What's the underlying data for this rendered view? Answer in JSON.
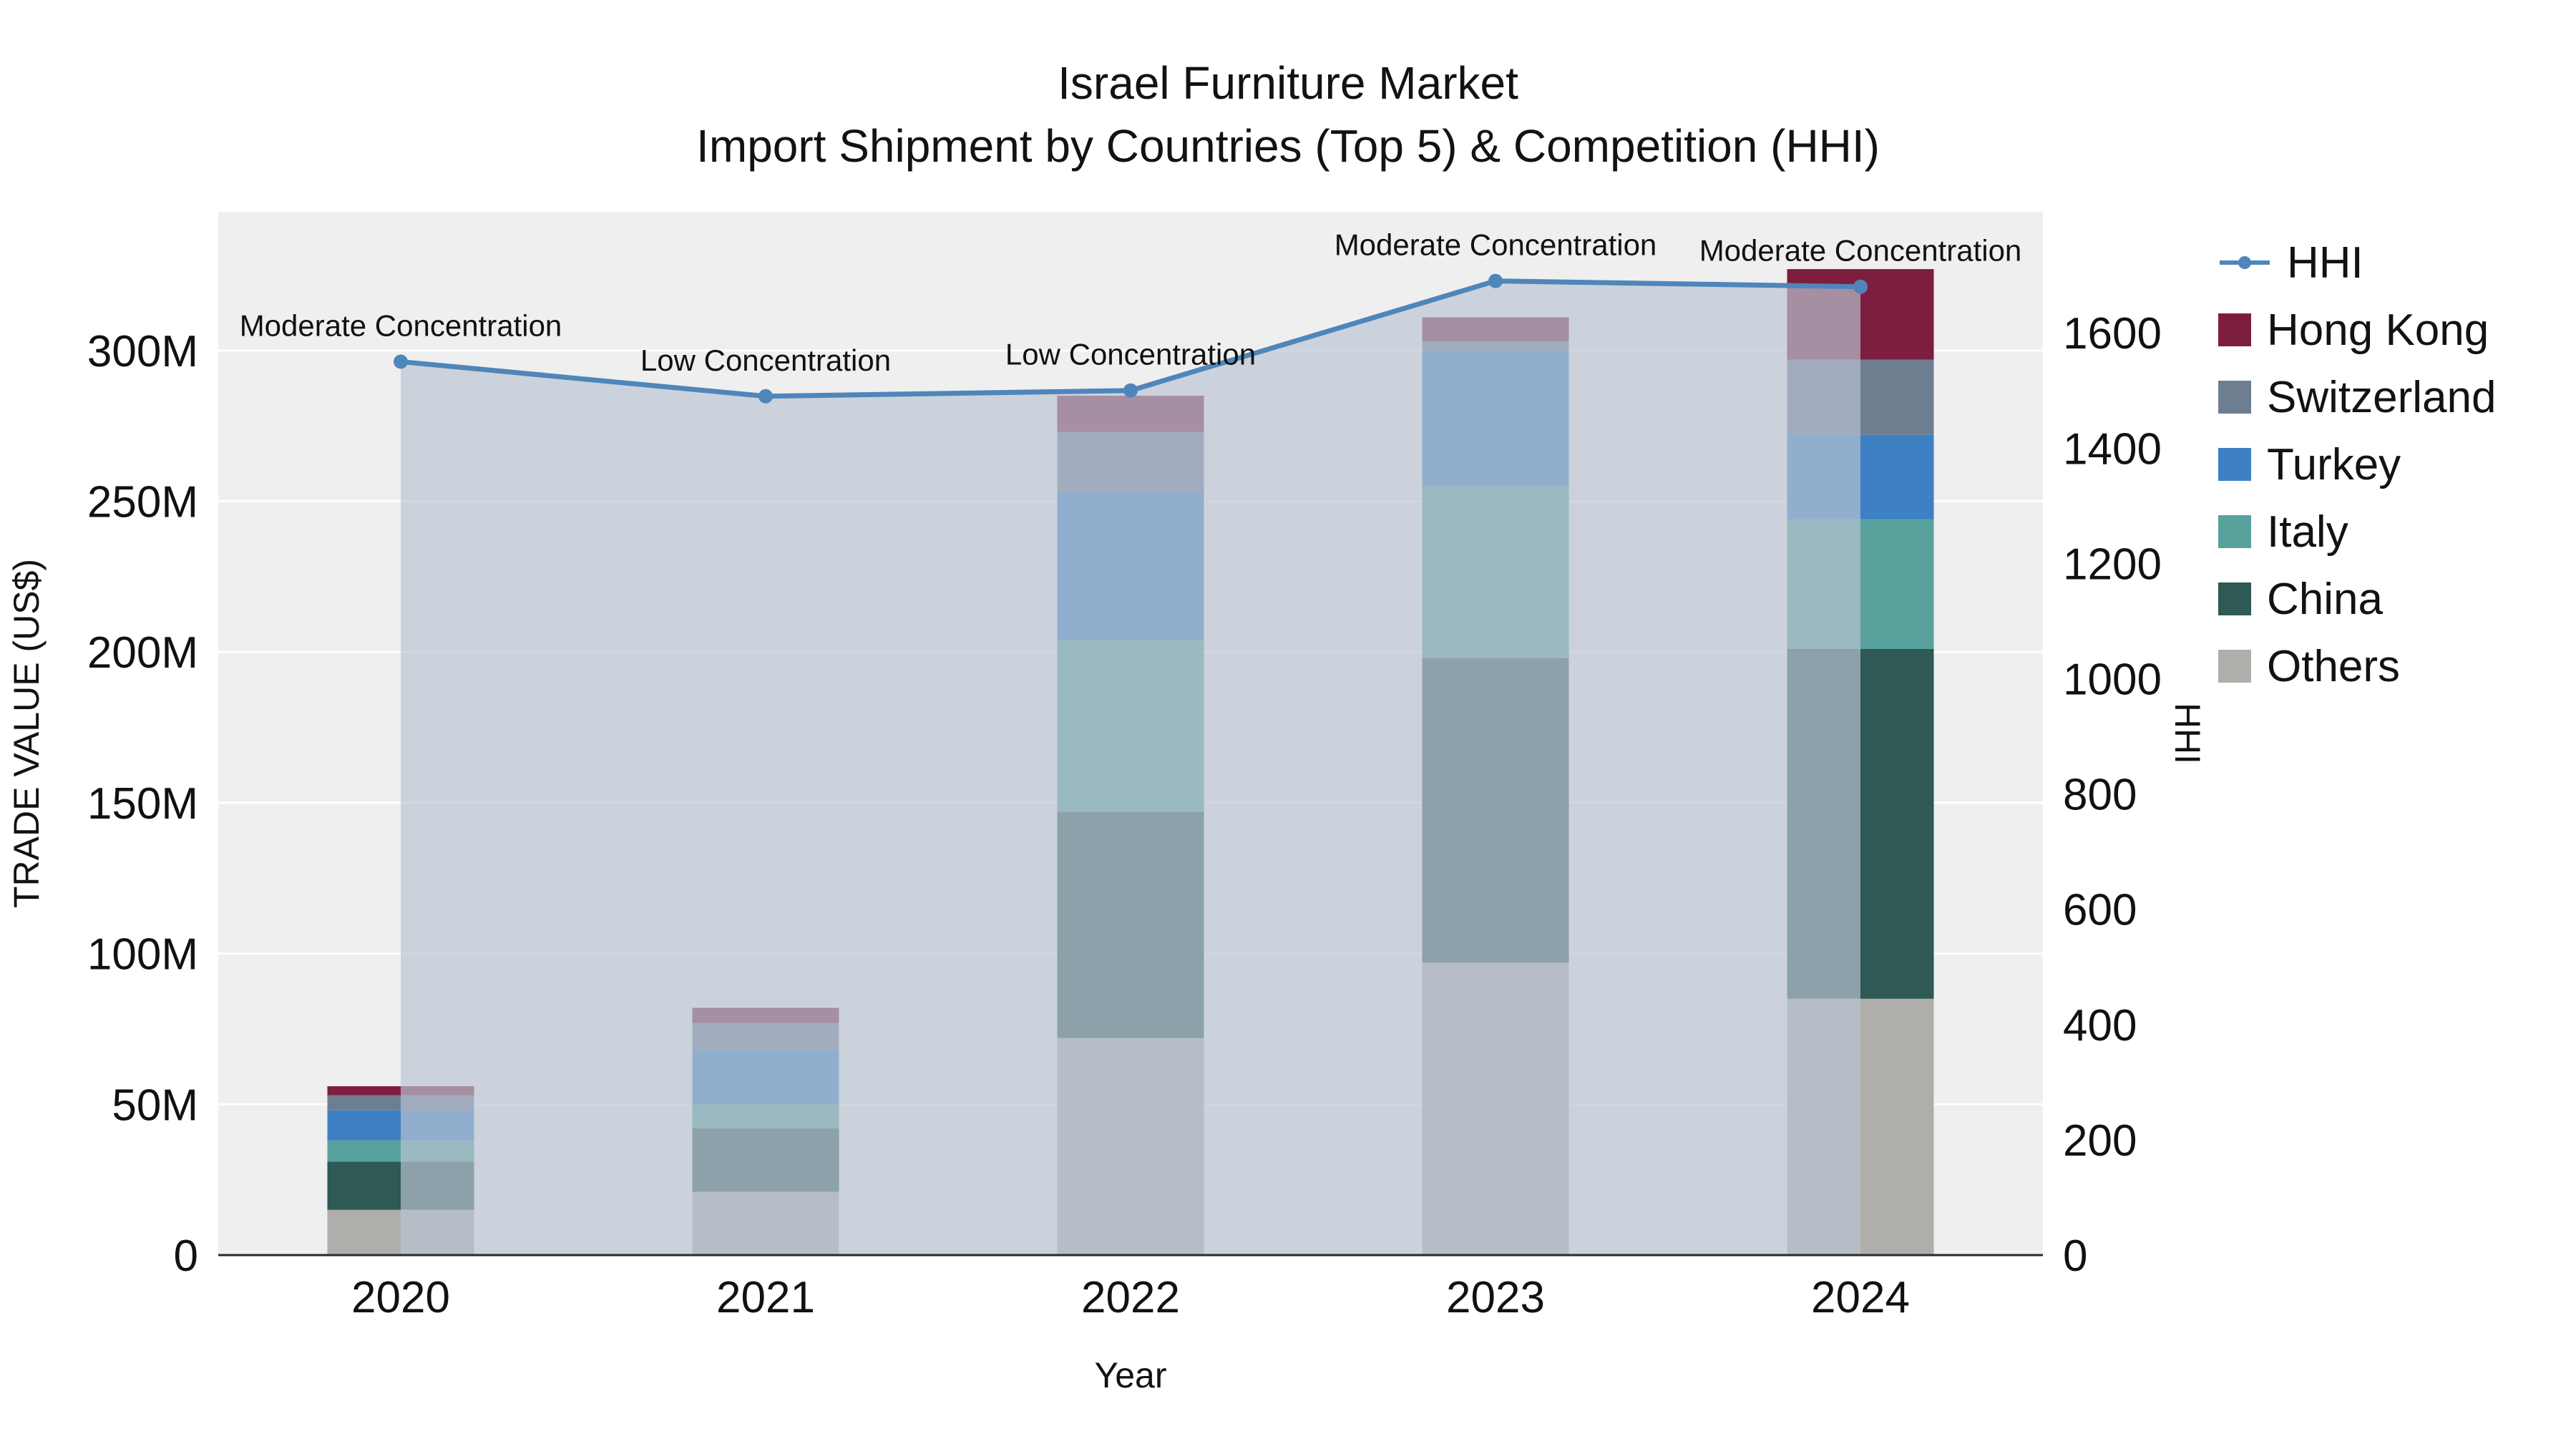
{
  "chart_data": {
    "type": "bar+line",
    "title_line1": "Israel Furniture Market",
    "title_line2": "Import Shipment by Countries (Top 5) & Competition (HHI)",
    "xlabel": "Year",
    "ylabel_left": "TRADE VALUE (US$)",
    "ylabel_right": "HHI",
    "categories": [
      "2020",
      "2021",
      "2022",
      "2023",
      "2024"
    ],
    "bar_value_unit": "million US$",
    "bar_stack_order_bottom_to_top": [
      "Others",
      "China",
      "Italy",
      "Turkey",
      "Switzerland",
      "Hong Kong"
    ],
    "series": [
      {
        "name": "Others",
        "color": "#b0aeab",
        "values": [
          15,
          21,
          72,
          97,
          85
        ]
      },
      {
        "name": "China",
        "color": "#2e5954",
        "values": [
          16,
          21,
          75,
          101,
          116
        ]
      },
      {
        "name": "Italy",
        "color": "#58a19d",
        "values": [
          7,
          8,
          57,
          57,
          43
        ]
      },
      {
        "name": "Turkey",
        "color": "#3d80c4",
        "values": [
          10,
          18,
          49,
          45,
          28
        ]
      },
      {
        "name": "Switzerland",
        "color": "#6e7e91",
        "values": [
          5,
          9,
          20,
          3,
          25
        ]
      },
      {
        "name": "Hong Kong",
        "color": "#7d1e40",
        "values": [
          3,
          5,
          12,
          8,
          30
        ]
      }
    ],
    "line": {
      "name": "HHI",
      "color": "#4f86ba",
      "values": [
        1550,
        1490,
        1500,
        1690,
        1680
      ],
      "fill_color": "rgba(185,196,211,0.68)"
    },
    "annotations": [
      "Moderate Concentration",
      "Low Concentration",
      "Low Concentration",
      "Moderate Concentration",
      "Moderate Concentration"
    ],
    "y_left_ticks": [
      "0",
      "50M",
      "100M",
      "150M",
      "200M",
      "250M",
      "300M"
    ],
    "y_left_tick_values": [
      0,
      50,
      100,
      150,
      200,
      250,
      300
    ],
    "ylim_left": [
      0,
      346
    ],
    "y_right_tick_values": [
      0,
      200,
      400,
      600,
      800,
      1000,
      1200,
      1400,
      1600
    ],
    "ylim_right": [
      0,
      1810
    ],
    "plot_bg": "#efefef",
    "grid": true,
    "legend_position": "right"
  },
  "legend": {
    "items": [
      {
        "label": "HHI",
        "type": "line",
        "color": "#4f86ba"
      },
      {
        "label": "Hong Kong",
        "type": "square",
        "color": "#7d1e40"
      },
      {
        "label": "Switzerland",
        "type": "square",
        "color": "#6e7e91"
      },
      {
        "label": "Turkey",
        "type": "square",
        "color": "#3d80c4"
      },
      {
        "label": "Italy",
        "type": "square",
        "color": "#58a19d"
      },
      {
        "label": "China",
        "type": "square",
        "color": "#2e5954"
      },
      {
        "label": "Others",
        "type": "square",
        "color": "#b0aeab"
      }
    ]
  }
}
